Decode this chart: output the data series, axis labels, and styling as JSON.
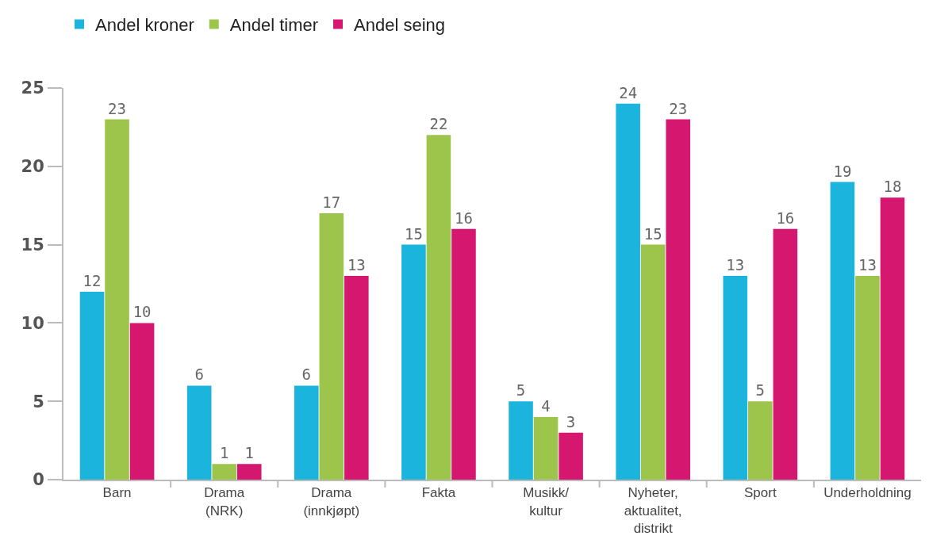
{
  "chart_data": {
    "type": "bar",
    "categories": [
      "Barn",
      "Drama\n(NRK)",
      "Drama\n(innkjøpt)",
      "Fakta",
      "Musikk/\nkultur",
      "Nyheter,\naktualitet,\ndistrikt",
      "Sport",
      "Underholdning"
    ],
    "series": [
      {
        "name": "Andel kroner",
        "color": "#1ab4dc",
        "values": [
          12,
          6,
          6,
          15,
          5,
          24,
          13,
          19
        ]
      },
      {
        "name": "Andel timer",
        "color": "#9dc54b",
        "values": [
          23,
          1,
          17,
          22,
          4,
          15,
          5,
          13
        ]
      },
      {
        "name": "Andel seing",
        "color": "#d6176f",
        "values": [
          10,
          1,
          13,
          16,
          3,
          23,
          16,
          18
        ]
      }
    ],
    "ylim": [
      0,
      25
    ],
    "yticks": [
      0,
      5,
      10,
      15,
      20,
      25
    ],
    "grid": false,
    "legend": "top left",
    "data_labels": true
  }
}
